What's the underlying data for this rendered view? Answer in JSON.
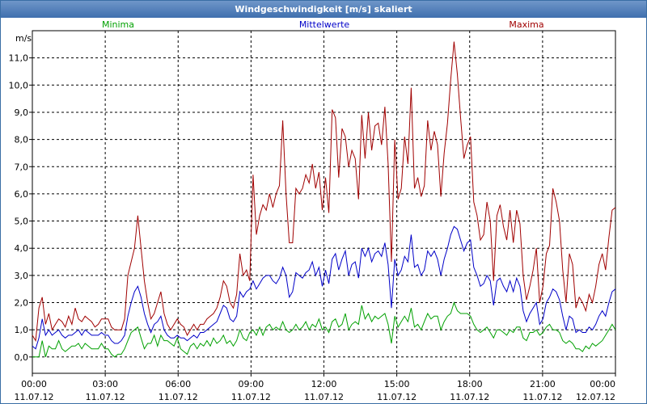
{
  "window": {
    "title": "Windgeschwindigkeit [m/s] skaliert"
  },
  "chart_data": {
    "type": "line",
    "title": "Windgeschwindigkeit [m/s] skaliert",
    "ylabel": "m/s",
    "ylim": [
      -0.6,
      12.0
    ],
    "xlim": [
      0,
      24
    ],
    "grid": true,
    "yticks": [
      "0,0",
      "1,0",
      "2,0",
      "3,0",
      "4,0",
      "5,0",
      "6,0",
      "7,0",
      "8,0",
      "9,0",
      "10,0",
      "11,0"
    ],
    "xticks": [
      {
        "time": "00:00",
        "date": "11.07.12"
      },
      {
        "time": "03:00",
        "date": "11.07.12"
      },
      {
        "time": "06:00",
        "date": "11.07.12"
      },
      {
        "time": "09:00",
        "date": "11.07.12"
      },
      {
        "time": "12:00",
        "date": "11.07.12"
      },
      {
        "time": "15:00",
        "date": "11.07.12"
      },
      {
        "time": "18:00",
        "date": "11.07.12"
      },
      {
        "time": "21:00",
        "date": "11.07.12"
      },
      {
        "time": "00:00",
        "date": "12.07.12"
      }
    ],
    "x_step_hours": 0.1667,
    "series": [
      {
        "name": "Maxima",
        "color": "#a00000",
        "legend": "Maxima",
        "values": [
          0.8,
          0.6,
          1.8,
          2.2,
          1.2,
          1.6,
          1.0,
          1.2,
          1.4,
          1.3,
          1.1,
          1.5,
          1.2,
          1.8,
          1.4,
          1.3,
          1.5,
          1.4,
          1.3,
          1.1,
          1.2,
          1.4,
          1.4,
          1.4,
          1.1,
          1.0,
          1.0,
          1.0,
          1.4,
          3.0,
          3.5,
          4.0,
          5.2,
          4.0,
          2.8,
          2.0,
          1.4,
          1.6,
          2.0,
          2.4,
          1.6,
          1.2,
          1.0,
          1.2,
          1.4,
          1.2,
          1.1,
          0.8,
          1.0,
          1.2,
          1.0,
          1.2,
          1.2,
          1.4,
          1.5,
          1.6,
          1.8,
          2.2,
          2.8,
          2.6,
          2.0,
          1.8,
          2.3,
          3.8,
          3.0,
          3.2,
          2.8,
          6.7,
          4.5,
          5.2,
          5.6,
          5.4,
          6.0,
          5.5,
          6.0,
          6.3,
          8.7,
          6.0,
          4.2,
          4.2,
          6.2,
          6.0,
          6.2,
          6.7,
          6.4,
          7.1,
          6.2,
          6.8,
          5.4,
          6.6,
          5.3,
          9.1,
          8.8,
          6.6,
          8.4,
          8.1,
          7.0,
          7.6,
          7.3,
          5.8,
          8.9,
          7.3,
          9.0,
          7.6,
          8.5,
          8.6,
          7.8,
          9.2,
          7.1,
          3.5,
          8.0,
          5.8,
          6.2,
          8.1,
          7.1,
          9.9,
          6.2,
          6.6,
          5.9,
          6.3,
          8.7,
          7.6,
          8.3,
          7.8,
          5.9,
          7.5,
          8.6,
          10.2,
          11.6,
          10.4,
          8.8,
          7.3,
          7.8,
          8.1,
          5.7,
          5.2,
          4.3,
          4.5,
          5.7,
          5.0,
          2.8,
          5.2,
          5.6,
          4.8,
          4.3,
          5.4,
          4.2,
          5.4,
          4.9,
          3.0,
          2.1,
          2.6,
          3.2,
          4.0,
          2.0,
          2.6,
          3.8,
          4.1,
          6.2,
          5.7,
          5.0,
          3.2,
          2.0,
          3.8,
          3.4,
          1.8,
          2.2,
          2.0,
          1.7,
          2.3,
          2.0,
          2.6,
          3.4,
          3.8,
          3.2,
          4.4,
          5.4,
          5.5
        ]
      },
      {
        "name": "Mittelwerte",
        "color": "#0000c8",
        "legend": "Mittelwerte",
        "values": [
          0.4,
          0.3,
          0.7,
          1.4,
          0.8,
          1.0,
          0.8,
          0.9,
          1.0,
          0.8,
          0.7,
          0.8,
          0.8,
          0.9,
          1.0,
          0.8,
          1.0,
          0.9,
          0.8,
          0.8,
          0.8,
          0.9,
          0.8,
          0.8,
          0.6,
          0.5,
          0.5,
          0.6,
          0.8,
          1.5,
          2.0,
          2.4,
          2.6,
          2.2,
          1.6,
          1.2,
          0.9,
          1.2,
          1.3,
          1.5,
          1.0,
          0.8,
          0.7,
          0.7,
          0.8,
          0.7,
          0.7,
          0.6,
          0.7,
          0.8,
          0.7,
          0.9,
          0.9,
          1.0,
          1.1,
          1.2,
          1.3,
          1.6,
          1.9,
          1.8,
          1.4,
          1.3,
          1.5,
          2.4,
          2.2,
          2.4,
          2.5,
          2.8,
          2.5,
          2.7,
          2.9,
          3.0,
          3.0,
          2.8,
          2.7,
          2.9,
          3.3,
          3.0,
          2.2,
          2.4,
          3.1,
          3.0,
          2.9,
          3.1,
          3.2,
          3.5,
          3.0,
          3.3,
          2.6,
          3.2,
          2.7,
          3.6,
          3.8,
          3.2,
          3.6,
          3.9,
          3.0,
          3.4,
          3.5,
          2.9,
          4.0,
          3.7,
          4.0,
          3.5,
          3.8,
          3.9,
          3.7,
          4.2,
          3.4,
          1.8,
          3.6,
          3.0,
          3.2,
          3.7,
          3.5,
          4.5,
          3.3,
          3.4,
          3.0,
          3.2,
          3.9,
          3.7,
          3.9,
          3.6,
          3.0,
          3.6,
          4.0,
          4.5,
          4.8,
          4.7,
          4.3,
          3.9,
          4.2,
          4.3,
          3.3,
          3.0,
          2.6,
          2.7,
          3.0,
          2.8,
          1.9,
          2.8,
          2.9,
          2.6,
          2.4,
          2.8,
          2.4,
          2.9,
          2.6,
          1.7,
          1.3,
          1.6,
          1.8,
          2.0,
          1.2,
          1.4,
          2.0,
          2.2,
          2.5,
          2.4,
          2.1,
          1.5,
          1.0,
          1.5,
          1.4,
          0.9,
          1.0,
          0.9,
          0.9,
          1.1,
          1.0,
          1.2,
          1.5,
          1.7,
          1.5,
          2.0,
          2.4,
          2.5
        ]
      },
      {
        "name": "Minima",
        "color": "#00a000",
        "legend": "Minima",
        "values": [
          0.0,
          0.0,
          0.0,
          0.6,
          0.0,
          0.4,
          0.3,
          0.3,
          0.6,
          0.3,
          0.2,
          0.3,
          0.4,
          0.4,
          0.5,
          0.3,
          0.5,
          0.4,
          0.3,
          0.3,
          0.3,
          0.5,
          0.3,
          0.3,
          0.1,
          0.0,
          0.1,
          0.1,
          0.3,
          0.6,
          0.9,
          1.0,
          1.1,
          0.7,
          0.3,
          0.5,
          0.5,
          0.8,
          0.4,
          0.8,
          0.6,
          0.6,
          0.5,
          0.4,
          0.7,
          0.3,
          0.2,
          0.1,
          0.4,
          0.5,
          0.3,
          0.5,
          0.4,
          0.6,
          0.4,
          0.7,
          0.5,
          0.6,
          0.8,
          0.5,
          0.6,
          0.4,
          0.6,
          1.0,
          0.7,
          0.6,
          0.9,
          1.0,
          0.8,
          1.1,
          0.8,
          1.1,
          1.2,
          1.0,
          1.1,
          1.0,
          1.3,
          1.0,
          0.9,
          1.0,
          1.2,
          1.0,
          1.1,
          1.3,
          1.0,
          1.2,
          1.1,
          1.4,
          1.0,
          1.1,
          0.9,
          1.3,
          1.4,
          1.1,
          1.2,
          1.6,
          1.0,
          1.2,
          1.3,
          1.2,
          1.9,
          1.4,
          1.6,
          1.3,
          1.5,
          1.4,
          1.5,
          1.6,
          1.2,
          0.5,
          1.5,
          1.1,
          1.3,
          1.5,
          1.3,
          1.8,
          1.1,
          1.2,
          1.0,
          1.3,
          1.6,
          1.4,
          1.5,
          1.5,
          1.0,
          1.3,
          1.5,
          1.6,
          2.0,
          1.7,
          1.6,
          1.6,
          1.6,
          1.5,
          1.2,
          1.0,
          0.9,
          1.0,
          1.1,
          0.9,
          0.7,
          1.0,
          1.0,
          0.9,
          0.8,
          1.0,
          0.9,
          1.1,
          1.1,
          0.7,
          0.6,
          0.9,
          0.9,
          1.0,
          0.8,
          0.9,
          1.1,
          1.2,
          1.0,
          1.0,
          0.9,
          0.6,
          0.5,
          0.6,
          0.5,
          0.3,
          0.3,
          0.2,
          0.4,
          0.3,
          0.5,
          0.4,
          0.5,
          0.6,
          0.8,
          1.0,
          1.2,
          1.0
        ]
      }
    ]
  }
}
